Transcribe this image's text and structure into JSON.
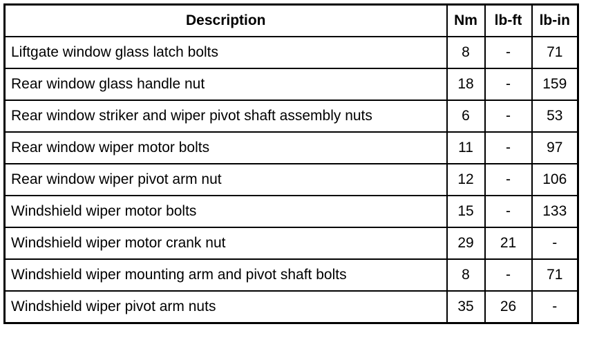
{
  "table": {
    "header": [
      "Description",
      "Nm",
      "lb-ft",
      "lb-in"
    ],
    "rows": [
      [
        "Liftgate window glass latch bolts",
        8,
        "-",
        71
      ],
      [
        "Rear window glass handle nut",
        18,
        "-",
        159
      ],
      [
        "Rear window striker and wiper pivot shaft assembly nuts",
        6,
        "-",
        53
      ],
      [
        "Rear window wiper motor bolts",
        11,
        "-",
        97
      ],
      [
        "Rear window wiper pivot arm nut",
        12,
        "-",
        106
      ],
      [
        "Windshield wiper motor bolts",
        15,
        "-",
        133
      ],
      [
        "Windshield wiper motor crank nut",
        29,
        21,
        "-"
      ],
      [
        "Windshield wiper mounting arm and pivot shaft bolts",
        8,
        "-",
        71
      ],
      [
        "Windshield wiper pivot arm nuts",
        35,
        26,
        "-"
      ]
    ]
  }
}
